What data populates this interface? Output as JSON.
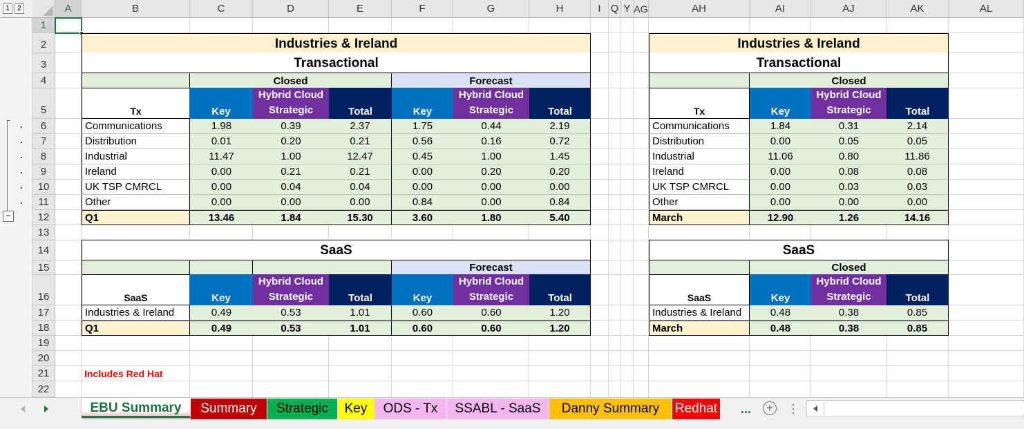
{
  "outline_levels": [
    "1",
    "2"
  ],
  "outline_collapse_symbol": "−",
  "columns": [
    "A",
    "B",
    "C",
    "D",
    "E",
    "F",
    "G",
    "H",
    "I",
    "Q",
    "Y",
    "AG",
    "AH",
    "AI",
    "AJ",
    "AK",
    "AL"
  ],
  "rows": [
    "1",
    "2",
    "3",
    "4",
    "5",
    "6",
    "7",
    "8",
    "9",
    "10",
    "11",
    "12",
    "13",
    "14",
    "15",
    "16",
    "17",
    "18",
    "19",
    "20",
    "21",
    "22"
  ],
  "left_tx": {
    "title": "Industries & Ireland",
    "subtitle": "Transactional",
    "closed_label": "Closed",
    "forecast_label": "Forecast",
    "row_header": "Tx",
    "key": "Key",
    "hybrid_1": "Hybrid Cloud",
    "hybrid_2": "Strategic",
    "total": "Total",
    "rows": [
      {
        "label": "Communications",
        "v": [
          "1.98",
          "0.39",
          "2.37",
          "1.75",
          "0.44",
          "2.19"
        ]
      },
      {
        "label": "Distribution",
        "v": [
          "0.01",
          "0.20",
          "0.21",
          "0.56",
          "0.16",
          "0.72"
        ]
      },
      {
        "label": "Industrial",
        "v": [
          "11.47",
          "1.00",
          "12.47",
          "0.45",
          "1.00",
          "1.45"
        ]
      },
      {
        "label": "Ireland",
        "v": [
          "0.00",
          "0.21",
          "0.21",
          "0.00",
          "0.20",
          "0.20"
        ]
      },
      {
        "label": "UK TSP CMRCL",
        "v": [
          "0.00",
          "0.04",
          "0.04",
          "0.00",
          "0.00",
          "0.00"
        ]
      },
      {
        "label": "Other",
        "v": [
          "0.00",
          "0.00",
          "0.00",
          "0.84",
          "0.00",
          "0.84"
        ]
      }
    ],
    "total_row": {
      "label": "Q1",
      "v": [
        "13.46",
        "1.84",
        "15.30",
        "3.60",
        "1.80",
        "5.40"
      ]
    }
  },
  "right_tx": {
    "title": "Industries & Ireland",
    "subtitle": "Transactional",
    "closed_label": "Closed",
    "row_header": "Tx",
    "key": "Key",
    "hybrid_1": "Hybrid Cloud",
    "hybrid_2": "Strategic",
    "total": "Total",
    "rows": [
      {
        "label": "Communications",
        "v": [
          "1.84",
          "0.31",
          "2.14"
        ]
      },
      {
        "label": "Distribution",
        "v": [
          "0.00",
          "0.05",
          "0.05"
        ]
      },
      {
        "label": "Industrial",
        "v": [
          "11.06",
          "0.80",
          "11.86"
        ]
      },
      {
        "label": "Ireland",
        "v": [
          "0.00",
          "0.08",
          "0.08"
        ]
      },
      {
        "label": "UK TSP CMRCL",
        "v": [
          "0.00",
          "0.03",
          "0.03"
        ]
      },
      {
        "label": "Other",
        "v": [
          "0.00",
          "0.00",
          "0.00"
        ]
      }
    ],
    "total_row": {
      "label": "March",
      "v": [
        "12.90",
        "1.26",
        "14.16"
      ]
    }
  },
  "left_saas": {
    "title": "SaaS",
    "forecast_label": "Forecast",
    "row_header": "SaaS",
    "key": "Key",
    "hybrid_1": "Hybrid Cloud",
    "hybrid_2": "Strategic",
    "total": "Total",
    "rows": [
      {
        "label": "Industries & Ireland",
        "v": [
          "0.49",
          "0.53",
          "1.01",
          "0.60",
          "0.60",
          "1.20"
        ]
      }
    ],
    "total_row": {
      "label": "Q1",
      "v": [
        "0.49",
        "0.53",
        "1.01",
        "0.60",
        "0.60",
        "1.20"
      ]
    }
  },
  "right_saas": {
    "title": "SaaS",
    "closed_label": "Closed",
    "row_header": "SaaS",
    "key": "Key",
    "hybrid_1": "Hybrid Cloud",
    "hybrid_2": "Strategic",
    "total": "Total",
    "rows": [
      {
        "label": "Industries & Ireland",
        "v": [
          "0.48",
          "0.38",
          "0.85"
        ]
      }
    ],
    "total_row": {
      "label": "March",
      "v": [
        "0.48",
        "0.38",
        "0.85"
      ]
    }
  },
  "note": "Includes Red Hat",
  "sheet_tabs": [
    {
      "label": "EBU Summary",
      "bg": "#ffffff",
      "color": "#1e7145",
      "active": true
    },
    {
      "label": "Summary",
      "bg": "#c00000",
      "color": "#ffffff"
    },
    {
      "label": "Strategic",
      "bg": "#00b050",
      "color": "#000000"
    },
    {
      "label": "Key",
      "bg": "#ffff00",
      "color": "#000000"
    },
    {
      "label": "ODS - Tx",
      "bg": "#f4b6f0",
      "color": "#000000"
    },
    {
      "label": "SSABL - SaaS",
      "bg": "#f4b6f0",
      "color": "#000000"
    },
    {
      "label": "Danny Summary",
      "bg": "#ffc000",
      "color": "#000000"
    },
    {
      "label": "Redhat",
      "bg": "#ff0000",
      "color": "#ffffff"
    }
  ],
  "tabs_more": "...",
  "add_sheet": "+",
  "colors": {
    "title_bg": "#fff2cc",
    "green_bg": "#e2efda",
    "forecast_bg": "#d9e1f2",
    "key_bg": "#0070c0",
    "hybrid_bg": "#7030a0",
    "total_bg": "#002060",
    "note_color": "#ff0000",
    "grid": "#d9d9d9",
    "header_bg": "#e6e6e6"
  }
}
